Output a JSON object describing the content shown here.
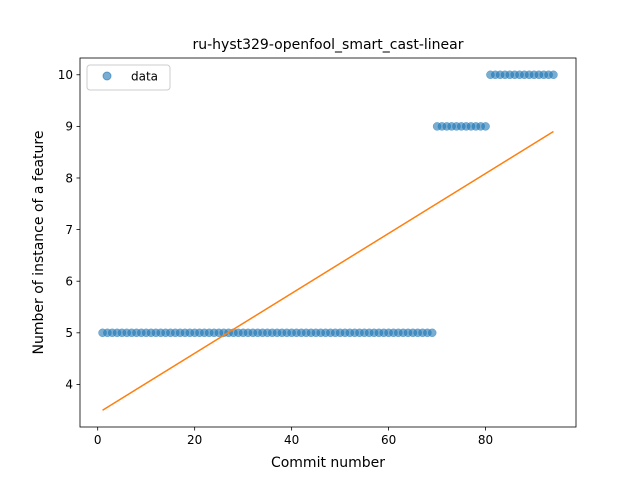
{
  "chart_data": {
    "type": "scatter",
    "title": "ru-hyst329-openfool_smart_cast-linear",
    "xlabel": "Commit number",
    "ylabel": "Number of instance of a feature",
    "xlim": [
      -3.65,
      98.65
    ],
    "ylim": [
      3.175,
      10.325
    ],
    "xticks": [
      0,
      20,
      40,
      60,
      80
    ],
    "yticks": [
      4,
      5,
      6,
      7,
      8,
      9,
      10
    ],
    "xtick_labels": [
      "0",
      "20",
      "40",
      "60",
      "80"
    ],
    "ytick_labels": [
      "4",
      "5",
      "6",
      "7",
      "8",
      "9",
      "10"
    ],
    "legend": {
      "position": "top-left",
      "entries": [
        "data"
      ]
    },
    "grid": false,
    "colors": {
      "data": "#1f77b4",
      "fit": "#ff7f0e"
    },
    "series": [
      {
        "name": "data",
        "kind": "points",
        "points": [
          [
            1,
            5
          ],
          [
            2,
            5
          ],
          [
            3,
            5
          ],
          [
            4,
            5
          ],
          [
            5,
            5
          ],
          [
            6,
            5
          ],
          [
            7,
            5
          ],
          [
            8,
            5
          ],
          [
            9,
            5
          ],
          [
            10,
            5
          ],
          [
            11,
            5
          ],
          [
            12,
            5
          ],
          [
            13,
            5
          ],
          [
            14,
            5
          ],
          [
            15,
            5
          ],
          [
            16,
            5
          ],
          [
            17,
            5
          ],
          [
            18,
            5
          ],
          [
            19,
            5
          ],
          [
            20,
            5
          ],
          [
            21,
            5
          ],
          [
            22,
            5
          ],
          [
            23,
            5
          ],
          [
            24,
            5
          ],
          [
            25,
            5
          ],
          [
            26,
            5
          ],
          [
            27,
            5
          ],
          [
            28,
            5
          ],
          [
            29,
            5
          ],
          [
            30,
            5
          ],
          [
            31,
            5
          ],
          [
            32,
            5
          ],
          [
            33,
            5
          ],
          [
            34,
            5
          ],
          [
            35,
            5
          ],
          [
            36,
            5
          ],
          [
            37,
            5
          ],
          [
            38,
            5
          ],
          [
            39,
            5
          ],
          [
            40,
            5
          ],
          [
            41,
            5
          ],
          [
            42,
            5
          ],
          [
            43,
            5
          ],
          [
            44,
            5
          ],
          [
            45,
            5
          ],
          [
            46,
            5
          ],
          [
            47,
            5
          ],
          [
            48,
            5
          ],
          [
            49,
            5
          ],
          [
            50,
            5
          ],
          [
            51,
            5
          ],
          [
            52,
            5
          ],
          [
            53,
            5
          ],
          [
            54,
            5
          ],
          [
            55,
            5
          ],
          [
            56,
            5
          ],
          [
            57,
            5
          ],
          [
            58,
            5
          ],
          [
            59,
            5
          ],
          [
            60,
            5
          ],
          [
            61,
            5
          ],
          [
            62,
            5
          ],
          [
            63,
            5
          ],
          [
            64,
            5
          ],
          [
            65,
            5
          ],
          [
            66,
            5
          ],
          [
            67,
            5
          ],
          [
            68,
            5
          ],
          [
            69,
            5
          ],
          [
            70,
            9
          ],
          [
            71,
            9
          ],
          [
            72,
            9
          ],
          [
            73,
            9
          ],
          [
            74,
            9
          ],
          [
            75,
            9
          ],
          [
            76,
            9
          ],
          [
            77,
            9
          ],
          [
            78,
            9
          ],
          [
            79,
            9
          ],
          [
            80,
            9
          ],
          [
            81,
            10
          ],
          [
            82,
            10
          ],
          [
            83,
            10
          ],
          [
            84,
            10
          ],
          [
            85,
            10
          ],
          [
            86,
            10
          ],
          [
            87,
            10
          ],
          [
            88,
            10
          ],
          [
            89,
            10
          ],
          [
            90,
            10
          ],
          [
            91,
            10
          ],
          [
            92,
            10
          ],
          [
            93,
            10
          ],
          [
            94,
            10
          ]
        ]
      },
      {
        "kind": "line",
        "points": [
          [
            1,
            3.5
          ],
          [
            94,
            8.9
          ]
        ]
      }
    ]
  }
}
